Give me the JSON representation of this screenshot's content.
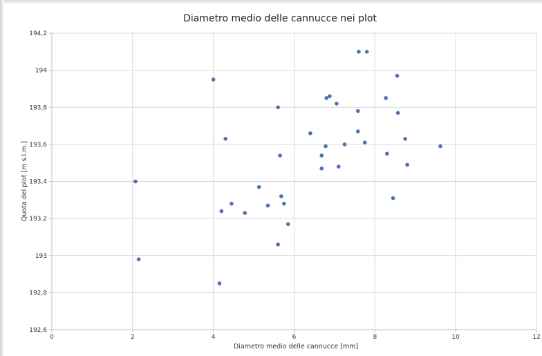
{
  "chart_data": {
    "type": "scatter",
    "title": "Diametro medio delle cannucce nei plot",
    "xlabel": "Diametro  medio  delle  cannucce  [mm]",
    "ylabel": "Quota  del plot  [m  s.l.m.]",
    "xlim": [
      0,
      12
    ],
    "ylim": [
      192.6,
      194.2
    ],
    "x_ticks": [
      "0",
      "2",
      "4",
      "6",
      "8",
      "10",
      "12"
    ],
    "y_ticks": [
      "192,6",
      "192,8",
      "193",
      "193,2",
      "193,4",
      "193,6",
      "193,8",
      "194",
      "194,2"
    ],
    "grid": true,
    "marker_color": "#4472c4",
    "points": [
      {
        "x": 2.07,
        "y": 193.4
      },
      {
        "x": 2.15,
        "y": 192.98
      },
      {
        "x": 4.0,
        "y": 193.95
      },
      {
        "x": 4.15,
        "y": 192.85
      },
      {
        "x": 4.2,
        "y": 193.24
      },
      {
        "x": 4.3,
        "y": 193.63
      },
      {
        "x": 4.45,
        "y": 193.28
      },
      {
        "x": 4.78,
        "y": 193.23
      },
      {
        "x": 5.13,
        "y": 193.37
      },
      {
        "x": 5.35,
        "y": 193.27
      },
      {
        "x": 5.6,
        "y": 193.8
      },
      {
        "x": 5.6,
        "y": 193.06
      },
      {
        "x": 5.65,
        "y": 193.54
      },
      {
        "x": 5.68,
        "y": 193.32
      },
      {
        "x": 5.75,
        "y": 193.28
      },
      {
        "x": 5.85,
        "y": 193.17
      },
      {
        "x": 6.4,
        "y": 193.66
      },
      {
        "x": 6.68,
        "y": 193.54
      },
      {
        "x": 6.68,
        "y": 193.47
      },
      {
        "x": 6.78,
        "y": 193.59
      },
      {
        "x": 6.8,
        "y": 193.85
      },
      {
        "x": 6.88,
        "y": 193.86
      },
      {
        "x": 7.05,
        "y": 193.82
      },
      {
        "x": 7.1,
        "y": 193.48
      },
      {
        "x": 7.25,
        "y": 193.6
      },
      {
        "x": 7.58,
        "y": 193.78
      },
      {
        "x": 7.58,
        "y": 193.67
      },
      {
        "x": 7.6,
        "y": 194.1
      },
      {
        "x": 7.75,
        "y": 193.61
      },
      {
        "x": 7.8,
        "y": 194.1
      },
      {
        "x": 8.27,
        "y": 193.85
      },
      {
        "x": 8.3,
        "y": 193.55
      },
      {
        "x": 8.45,
        "y": 193.31
      },
      {
        "x": 8.55,
        "y": 193.97
      },
      {
        "x": 8.57,
        "y": 193.77
      },
      {
        "x": 8.75,
        "y": 193.63
      },
      {
        "x": 8.8,
        "y": 193.49
      },
      {
        "x": 9.62,
        "y": 193.59
      }
    ]
  }
}
